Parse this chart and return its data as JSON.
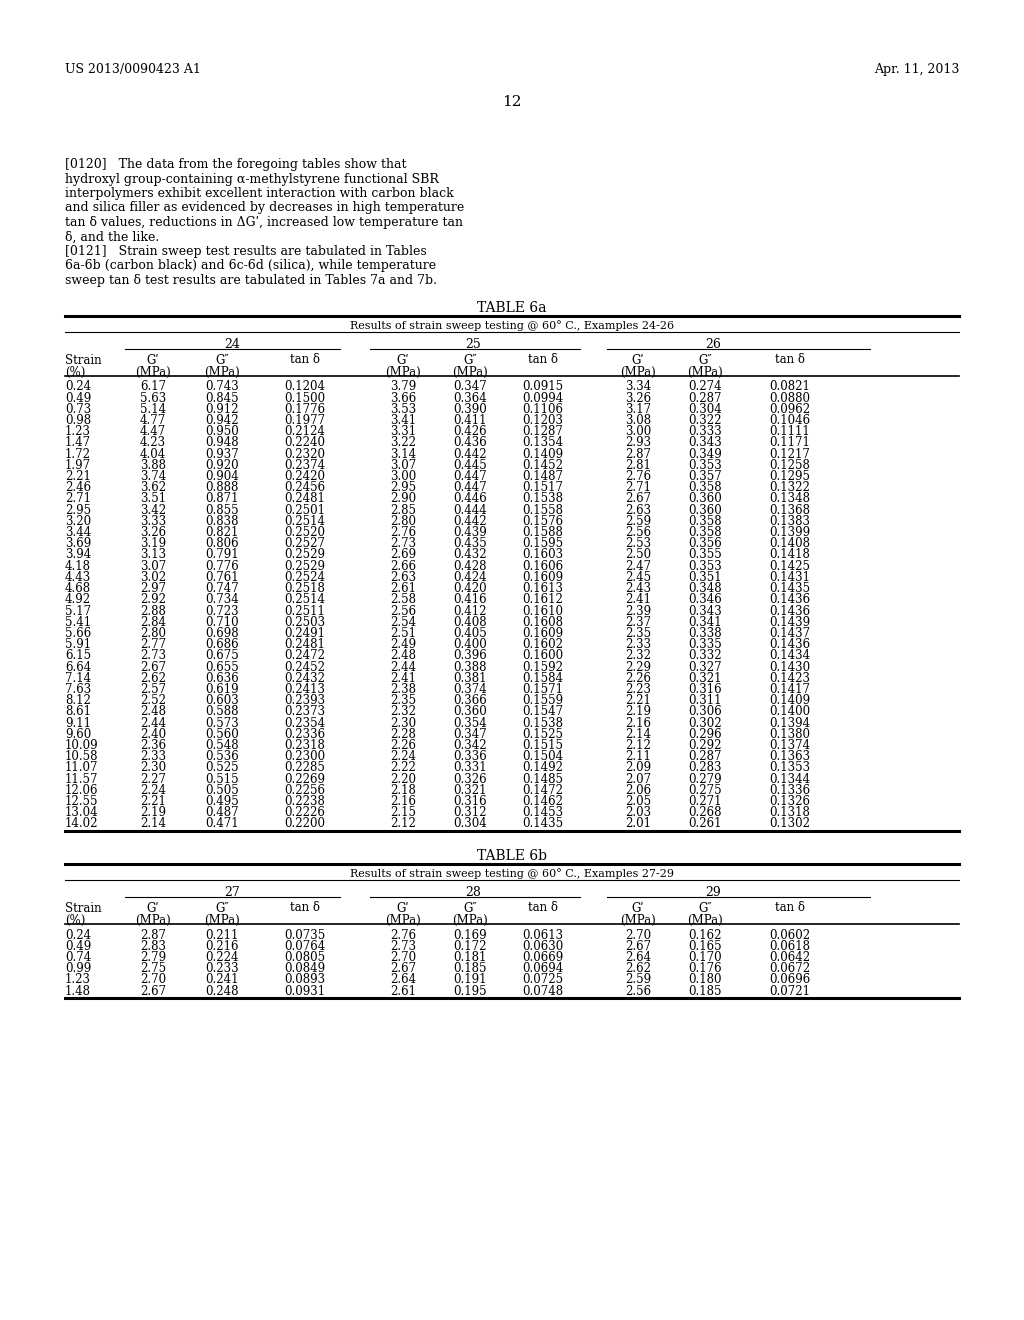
{
  "header_left": "US 2013/0090423 A1",
  "header_right": "Apr. 11, 2013",
  "page_number": "12",
  "para_120_lines": [
    "[0120]   The data from the foregoing tables show that",
    "hydroxyl group-containing α-methylstyrene functional SBR",
    "interpolymers exhibit excellent interaction with carbon black",
    "and silica filler as evidenced by decreases in high temperature",
    "tan δ values, reductions in ΔGʹ, increased low temperature tan",
    "δ, and the like."
  ],
  "para_121_lines": [
    "[0121]   Strain sweep test results are tabulated in Tables",
    "6a-6b (carbon black) and 6c-6d (silica), while temperature",
    "sweep tan δ test results are tabulated in Tables 7a and 7b."
  ],
  "table6a_title": "TABLE 6a",
  "table6a_subtitle": "Results of strain sweep testing @ 60° C., Examples 24-26",
  "table6a_examples": [
    "24",
    "25",
    "26"
  ],
  "table6b_title": "TABLE 6b",
  "table6b_subtitle": "Results of strain sweep testing @ 60° C., Examples 27-29",
  "table6b_examples": [
    "27",
    "28",
    "29"
  ],
  "table6a_data": [
    [
      0.24,
      6.17,
      0.743,
      0.1204,
      3.79,
      0.347,
      0.0915,
      3.34,
      0.274,
      0.0821
    ],
    [
      0.49,
      5.63,
      0.845,
      0.15,
      3.66,
      0.364,
      0.0994,
      3.26,
      0.287,
      0.088
    ],
    [
      0.73,
      5.14,
      0.912,
      0.1776,
      3.53,
      0.39,
      0.1106,
      3.17,
      0.304,
      0.0962
    ],
    [
      0.98,
      4.77,
      0.942,
      0.1977,
      3.41,
      0.411,
      0.1203,
      3.08,
      0.322,
      0.1046
    ],
    [
      1.23,
      4.47,
      0.95,
      0.2124,
      3.31,
      0.426,
      0.1287,
      3.0,
      0.333,
      0.1111
    ],
    [
      1.47,
      4.23,
      0.948,
      0.224,
      3.22,
      0.436,
      0.1354,
      2.93,
      0.343,
      0.1171
    ],
    [
      1.72,
      4.04,
      0.937,
      0.232,
      3.14,
      0.442,
      0.1409,
      2.87,
      0.349,
      0.1217
    ],
    [
      1.97,
      3.88,
      0.92,
      0.2374,
      3.07,
      0.445,
      0.1452,
      2.81,
      0.353,
      0.1258
    ],
    [
      2.21,
      3.74,
      0.904,
      0.242,
      3.0,
      0.447,
      0.1487,
      2.76,
      0.357,
      0.1295
    ],
    [
      2.46,
      3.62,
      0.888,
      0.2456,
      2.95,
      0.447,
      0.1517,
      2.71,
      0.358,
      0.1322
    ],
    [
      2.71,
      3.51,
      0.871,
      0.2481,
      2.9,
      0.446,
      0.1538,
      2.67,
      0.36,
      0.1348
    ],
    [
      2.95,
      3.42,
      0.855,
      0.2501,
      2.85,
      0.444,
      0.1558,
      2.63,
      0.36,
      0.1368
    ],
    [
      3.2,
      3.33,
      0.838,
      0.2514,
      2.8,
      0.442,
      0.1576,
      2.59,
      0.358,
      0.1383
    ],
    [
      3.44,
      3.26,
      0.821,
      0.252,
      2.76,
      0.439,
      0.1588,
      2.56,
      0.358,
      0.1399
    ],
    [
      3.69,
      3.19,
      0.806,
      0.2527,
      2.73,
      0.435,
      0.1595,
      2.53,
      0.356,
      0.1408
    ],
    [
      3.94,
      3.13,
      0.791,
      0.2529,
      2.69,
      0.432,
      0.1603,
      2.5,
      0.355,
      0.1418
    ],
    [
      4.18,
      3.07,
      0.776,
      0.2529,
      2.66,
      0.428,
      0.1606,
      2.47,
      0.353,
      0.1425
    ],
    [
      4.43,
      3.02,
      0.761,
      0.2524,
      2.63,
      0.424,
      0.1609,
      2.45,
      0.351,
      0.1431
    ],
    [
      4.68,
      2.97,
      0.747,
      0.2518,
      2.61,
      0.42,
      0.1613,
      2.43,
      0.348,
      0.1435
    ],
    [
      4.92,
      2.92,
      0.734,
      0.2514,
      2.58,
      0.416,
      0.1612,
      2.41,
      0.346,
      0.1436
    ],
    [
      5.17,
      2.88,
      0.723,
      0.2511,
      2.56,
      0.412,
      0.161,
      2.39,
      0.343,
      0.1436
    ],
    [
      5.41,
      2.84,
      0.71,
      0.2503,
      2.54,
      0.408,
      0.1608,
      2.37,
      0.341,
      0.1439
    ],
    [
      5.66,
      2.8,
      0.698,
      0.2491,
      2.51,
      0.405,
      0.1609,
      2.35,
      0.338,
      0.1437
    ],
    [
      5.91,
      2.77,
      0.686,
      0.2481,
      2.49,
      0.4,
      0.1602,
      2.33,
      0.335,
      0.1436
    ],
    [
      6.15,
      2.73,
      0.675,
      0.2472,
      2.48,
      0.396,
      0.16,
      2.32,
      0.332,
      0.1434
    ],
    [
      6.64,
      2.67,
      0.655,
      0.2452,
      2.44,
      0.388,
      0.1592,
      2.29,
      0.327,
      0.143
    ],
    [
      7.14,
      2.62,
      0.636,
      0.2432,
      2.41,
      0.381,
      0.1584,
      2.26,
      0.321,
      0.1423
    ],
    [
      7.63,
      2.57,
      0.619,
      0.2413,
      2.38,
      0.374,
      0.1571,
      2.23,
      0.316,
      0.1417
    ],
    [
      8.12,
      2.52,
      0.603,
      0.2393,
      2.35,
      0.366,
      0.1559,
      2.21,
      0.311,
      0.1409
    ],
    [
      8.61,
      2.48,
      0.588,
      0.2373,
      2.32,
      0.36,
      0.1547,
      2.19,
      0.306,
      0.14
    ],
    [
      9.11,
      2.44,
      0.573,
      0.2354,
      2.3,
      0.354,
      0.1538,
      2.16,
      0.302,
      0.1394
    ],
    [
      9.6,
      2.4,
      0.56,
      0.2336,
      2.28,
      0.347,
      0.1525,
      2.14,
      0.296,
      0.138
    ],
    [
      10.09,
      2.36,
      0.548,
      0.2318,
      2.26,
      0.342,
      0.1515,
      2.12,
      0.292,
      0.1374
    ],
    [
      10.58,
      2.33,
      0.536,
      0.23,
      2.24,
      0.336,
      0.1504,
      2.11,
      0.287,
      0.1363
    ],
    [
      11.07,
      2.3,
      0.525,
      0.2285,
      2.22,
      0.331,
      0.1492,
      2.09,
      0.283,
      0.1353
    ],
    [
      11.57,
      2.27,
      0.515,
      0.2269,
      2.2,
      0.326,
      0.1485,
      2.07,
      0.279,
      0.1344
    ],
    [
      12.06,
      2.24,
      0.505,
      0.2256,
      2.18,
      0.321,
      0.1472,
      2.06,
      0.275,
      0.1336
    ],
    [
      12.55,
      2.21,
      0.495,
      0.2238,
      2.16,
      0.316,
      0.1462,
      2.05,
      0.271,
      0.1326
    ],
    [
      13.04,
      2.19,
      0.487,
      0.2226,
      2.15,
      0.312,
      0.1453,
      2.03,
      0.268,
      0.1318
    ],
    [
      14.02,
      2.14,
      0.471,
      0.22,
      2.12,
      0.304,
      0.1435,
      2.01,
      0.261,
      0.1302
    ]
  ],
  "table6b_data": [
    [
      0.24,
      2.87,
      0.211,
      0.0735,
      2.76,
      0.169,
      0.0613,
      2.7,
      0.162,
      0.0602
    ],
    [
      0.49,
      2.83,
      0.216,
      0.0764,
      2.73,
      0.172,
      0.063,
      2.67,
      0.165,
      0.0618
    ],
    [
      0.74,
      2.79,
      0.224,
      0.0805,
      2.7,
      0.181,
      0.0669,
      2.64,
      0.17,
      0.0642
    ],
    [
      0.99,
      2.75,
      0.233,
      0.0849,
      2.67,
      0.185,
      0.0694,
      2.62,
      0.176,
      0.0672
    ],
    [
      1.23,
      2.7,
      0.241,
      0.0893,
      2.64,
      0.191,
      0.0725,
      2.59,
      0.18,
      0.0696
    ],
    [
      1.48,
      2.67,
      0.248,
      0.0931,
      2.61,
      0.195,
      0.0748,
      2.56,
      0.185,
      0.0721
    ]
  ]
}
